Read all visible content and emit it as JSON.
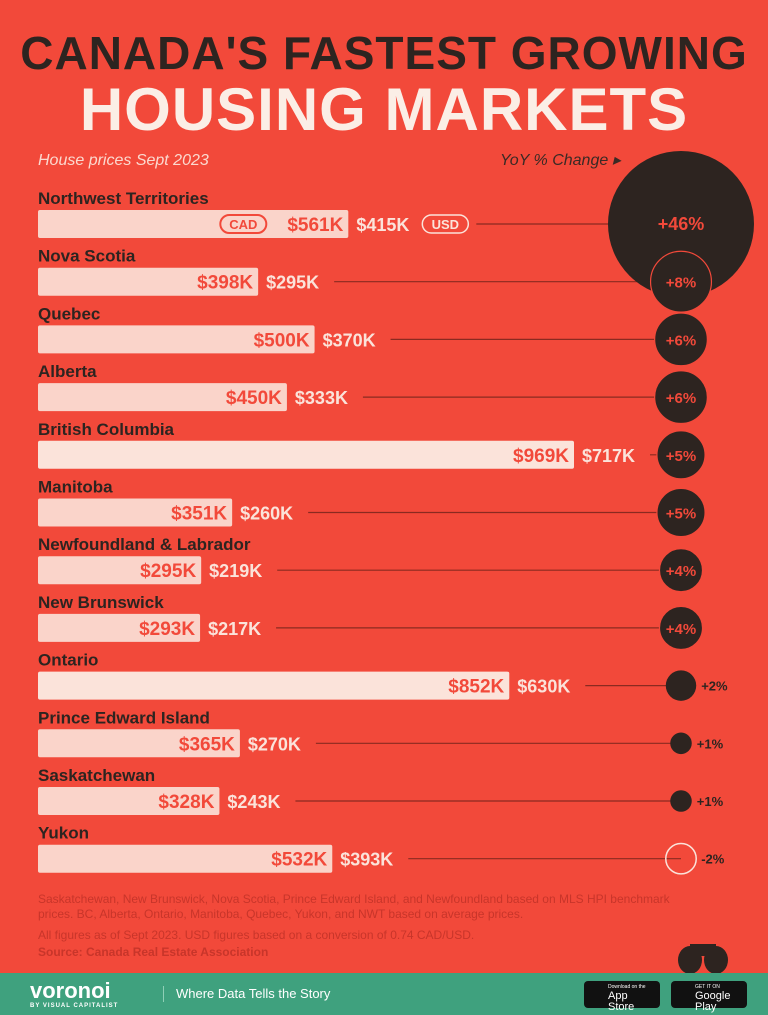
{
  "title_line1": "CANADA'S FASTEST GROWING",
  "title_line2": "HOUSING MARKETS",
  "subtitle": "House prices Sept 2023",
  "yoy_label": "YoY % Change ▸",
  "chart_data": {
    "type": "bar",
    "categories": [
      "Northwest Territories",
      "Nova Scotia",
      "Quebec",
      "Alberta",
      "British Columbia",
      "Manitoba",
      "Newfoundland & Labrador",
      "New Brunswick",
      "Ontario",
      "Prince Edward Island",
      "Saskatchewan",
      "Yukon"
    ],
    "series": [
      {
        "name": "CAD",
        "values": [
          561,
          398,
          500,
          450,
          969,
          351,
          295,
          293,
          852,
          365,
          328,
          532
        ],
        "labels": [
          "$561K",
          "$398K",
          "$500K",
          "$450K",
          "$969K",
          "$351K",
          "$295K",
          "$293K",
          "$852K",
          "$365K",
          "$328K",
          "$532K"
        ]
      },
      {
        "name": "USD",
        "values": [
          415,
          295,
          370,
          333,
          717,
          260,
          219,
          217,
          630,
          270,
          243,
          393
        ],
        "labels": [
          "$415K",
          "$295K",
          "$370K",
          "$333K",
          "$717K",
          "$260K",
          "$219K",
          "$217K",
          "$630K",
          "$270K",
          "$243K",
          "$393K"
        ]
      },
      {
        "name": "YoY % Change",
        "values": [
          46,
          8,
          6,
          6,
          5,
          5,
          4,
          4,
          2,
          1,
          1,
          -2
        ],
        "labels": [
          "+46%",
          "+8%",
          "+6%",
          "+6%",
          "+5%",
          "+5%",
          "+4%",
          "+4%",
          "+2%",
          "+1%",
          "+1%",
          "-2%"
        ]
      }
    ],
    "unit_tags": {
      "cad": "CAD",
      "usd": "USD"
    },
    "colors": {
      "background": "#f2493a",
      "bar": "#fbe3da",
      "dark": "#2d2420",
      "accent": "#f2493a"
    }
  },
  "footnote1": "Saskatchewan, New Brunswick, Nova Scotia, Prince Edward Island, and Newfoundland based on MLS HPI benchmark prices. BC, Alberta, Ontario, Manitoba, Quebec, Yukon, and NWT based on average prices.",
  "footnote2": "All figures as of Sept 2023. USD figures based on a conversion of 0.74 CAD/USD.",
  "source": "Source: Canada Real Estate Association",
  "footer": {
    "brand": "voronoi",
    "brand_sub": "BY VISUAL CAPITALIST",
    "tagline": "Where Data Tells the Story",
    "appstore_small": "Download on the",
    "appstore": "App Store",
    "play_small": "GET IT ON",
    "play": "Google Play"
  }
}
